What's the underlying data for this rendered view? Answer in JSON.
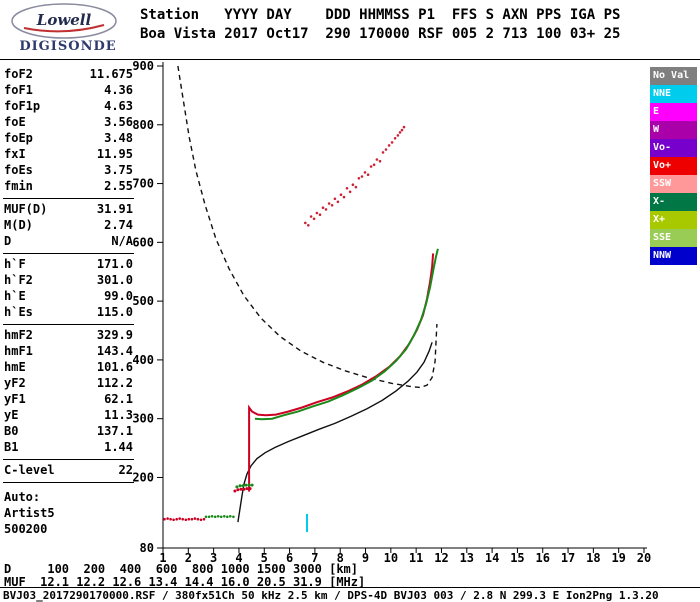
{
  "logo": {
    "line1": "Lowell",
    "line2": "DIGISONDE"
  },
  "header": {
    "line1": "Station   YYYY DAY    DDD HHMMSS P1  FFS S AXN PPS IGA PS",
    "line2": "Boa Vista 2017 Oct17  290 170000 RSF 005 2 713 100 03+ 25"
  },
  "params": {
    "groups": [
      {
        "rows": [
          {
            "label": "foF2",
            "value": "11.675"
          },
          {
            "label": "foF1",
            "value": "4.36"
          },
          {
            "label": "foF1p",
            "value": "4.63"
          },
          {
            "label": "foE",
            "value": "3.56"
          },
          {
            "label": "foEp",
            "value": "3.48"
          },
          {
            "label": "fxI",
            "value": "11.95"
          },
          {
            "label": "foEs",
            "value": "3.75"
          },
          {
            "label": "fmin",
            "value": "2.55"
          }
        ]
      },
      {
        "rows": [
          {
            "label": "MUF(D)",
            "value": "31.91"
          },
          {
            "label": "M(D)",
            "value": "2.74"
          },
          {
            "label": "D",
            "value": "N/A"
          }
        ]
      },
      {
        "rows": [
          {
            "label": "h`F",
            "value": "171.0"
          },
          {
            "label": "h`F2",
            "value": "301.0"
          },
          {
            "label": "h`E",
            "value": "99.0"
          },
          {
            "label": "h`Es",
            "value": "115.0"
          }
        ]
      },
      {
        "rows": [
          {
            "label": "hmF2",
            "value": "329.9"
          },
          {
            "label": "hmF1",
            "value": "143.4"
          },
          {
            "label": "hmE",
            "value": "101.6"
          },
          {
            "label": "yF2",
            "value": "112.2"
          },
          {
            "label": "yF1",
            "value": "62.1"
          },
          {
            "label": "yE",
            "value": "11.3"
          },
          {
            "label": "B0",
            "value": "137.1"
          },
          {
            "label": "B1",
            "value": "1.44"
          }
        ]
      },
      {
        "rows": [
          {
            "label": "C-level",
            "value": "22"
          }
        ]
      }
    ],
    "footer": [
      "Auto:",
      "Artist5",
      "500200"
    ]
  },
  "legend": {
    "items": [
      {
        "label": "No Val",
        "color": "#7f7f7f"
      },
      {
        "label": "NNE",
        "color": "#00ccee"
      },
      {
        "label": "E",
        "color": "#ff00ff"
      },
      {
        "label": "W",
        "color": "#aa00aa"
      },
      {
        "label": "Vo-",
        "color": "#7700cc"
      },
      {
        "label": "Vo+",
        "color": "#ee0000"
      },
      {
        "label": "SSW",
        "color": "#ff9999"
      },
      {
        "label": "X-",
        "color": "#007744"
      },
      {
        "label": "X+",
        "color": "#a8c800"
      },
      {
        "label": "SSE",
        "color": "#99cc55"
      },
      {
        "label": "NNW",
        "color": "#0000cc"
      }
    ]
  },
  "distance_table": {
    "d_label": "D",
    "d_unit": "[km]",
    "distances": [
      100,
      200,
      400,
      600,
      800,
      1000,
      1500,
      3000
    ],
    "muf_label": "MUF",
    "muf_unit": "[MHz]",
    "muf_values": [
      12.1,
      12.2,
      12.6,
      13.4,
      14.4,
      16.0,
      20.5,
      31.9
    ]
  },
  "footer_line": "BVJ03_2017290170000.RSF / 380fx51Ch 50 kHz 2.5 km / DPS-4D BVJ03 003 / 2.8 N 299.3 E Ion2Png 1.3.20",
  "chart_data": {
    "type": "line",
    "title": "",
    "xlabel": "",
    "ylabel": "",
    "xlim": [
      1,
      20
    ],
    "ylim": [
      80,
      900
    ],
    "x_ticks": [
      1,
      2,
      3,
      4,
      5,
      6,
      7,
      8,
      9,
      10,
      11,
      12,
      13,
      14,
      15,
      16,
      17,
      18,
      19,
      20
    ],
    "y_ticks": [
      80,
      200,
      300,
      400,
      500,
      600,
      700,
      800,
      900
    ],
    "grid": false,
    "legend_position": "right",
    "series": [
      {
        "name": "transmission-curve",
        "render": "dash",
        "color": "#111111",
        "width": 1.4,
        "points": [
          [
            1.59,
            900
          ],
          [
            1.79,
            845
          ],
          [
            2.03,
            780
          ],
          [
            2.3,
            722
          ],
          [
            2.66,
            664
          ],
          [
            3.09,
            606
          ],
          [
            3.61,
            555
          ],
          [
            4.2,
            509
          ],
          [
            4.87,
            471
          ],
          [
            5.62,
            440
          ],
          [
            6.45,
            415
          ],
          [
            7.32,
            396
          ],
          [
            8.23,
            381
          ],
          [
            9.14,
            369
          ],
          [
            10.05,
            360
          ],
          [
            10.76,
            355
          ],
          [
            11.15,
            353
          ],
          [
            11.43,
            357
          ],
          [
            11.63,
            370
          ],
          [
            11.75,
            398
          ],
          [
            11.78,
            427
          ],
          [
            11.82,
            461
          ]
        ]
      },
      {
        "name": "electron-density-profile",
        "render": "line",
        "color": "#111111",
        "width": 1.4,
        "points": [
          [
            3.96,
            124
          ],
          [
            4.04,
            147
          ],
          [
            4.12,
            169
          ],
          [
            4.2,
            189
          ],
          [
            4.32,
            206
          ],
          [
            4.48,
            220
          ],
          [
            4.71,
            232
          ],
          [
            5.03,
            242
          ],
          [
            5.42,
            251
          ],
          [
            5.94,
            261
          ],
          [
            6.53,
            271
          ],
          [
            7.16,
            282
          ],
          [
            7.79,
            292
          ],
          [
            8.43,
            304
          ],
          [
            9.06,
            317
          ],
          [
            9.65,
            331
          ],
          [
            10.2,
            347
          ],
          [
            10.68,
            364
          ],
          [
            11.03,
            379
          ],
          [
            11.31,
            396
          ],
          [
            11.51,
            415
          ],
          [
            11.63,
            430
          ]
        ]
      },
      {
        "name": "o-trace",
        "render": "line",
        "color": "#cc0022",
        "width": 2,
        "points": [
          [
            4.4,
            176
          ],
          [
            4.4,
            319
          ],
          [
            4.52,
            312
          ],
          [
            4.75,
            307
          ],
          [
            5.07,
            306
          ],
          [
            5.46,
            307
          ],
          [
            5.94,
            312
          ],
          [
            6.49,
            319
          ],
          [
            7.08,
            328
          ],
          [
            7.68,
            336
          ],
          [
            8.27,
            346
          ],
          [
            8.86,
            358
          ],
          [
            9.41,
            372
          ],
          [
            9.93,
            388
          ],
          [
            10.36,
            406
          ],
          [
            10.72,
            427
          ],
          [
            11.03,
            451
          ],
          [
            11.27,
            476
          ],
          [
            11.43,
            504
          ],
          [
            11.55,
            533
          ],
          [
            11.63,
            558
          ],
          [
            11.67,
            581
          ]
        ]
      },
      {
        "name": "x-trace",
        "render": "line",
        "color": "#1a8a1a",
        "width": 2,
        "points": [
          [
            4.63,
            300
          ],
          [
            4.91,
            299
          ],
          [
            5.31,
            300
          ],
          [
            5.78,
            306
          ],
          [
            6.33,
            312
          ],
          [
            6.93,
            321
          ],
          [
            7.52,
            329
          ],
          [
            8.11,
            340
          ],
          [
            8.7,
            352
          ],
          [
            9.26,
            365
          ],
          [
            9.77,
            381
          ],
          [
            10.2,
            398
          ],
          [
            10.6,
            418
          ],
          [
            10.92,
            442
          ],
          [
            11.19,
            468
          ],
          [
            11.39,
            495
          ],
          [
            11.55,
            524
          ],
          [
            11.67,
            551
          ],
          [
            11.78,
            575
          ],
          [
            11.86,
            589
          ]
        ]
      },
      {
        "name": "spread-f-scatter",
        "render": "dots",
        "color": "#cc2233",
        "r": 1.3,
        "points": [
          [
            6.62,
            633
          ],
          [
            6.74,
            629
          ],
          [
            6.85,
            644
          ],
          [
            6.97,
            640
          ],
          [
            7.08,
            650
          ],
          [
            7.2,
            647
          ],
          [
            7.32,
            659
          ],
          [
            7.44,
            656
          ],
          [
            7.56,
            666
          ],
          [
            7.68,
            663
          ],
          [
            7.79,
            674
          ],
          [
            7.91,
            669
          ],
          [
            8.03,
            681
          ],
          [
            8.15,
            677
          ],
          [
            8.27,
            692
          ],
          [
            8.39,
            686
          ],
          [
            8.5,
            698
          ],
          [
            8.62,
            694
          ],
          [
            8.74,
            709
          ],
          [
            8.86,
            712
          ],
          [
            8.98,
            719
          ],
          [
            9.1,
            715
          ],
          [
            9.22,
            729
          ],
          [
            9.34,
            732
          ],
          [
            9.45,
            741
          ],
          [
            9.57,
            738
          ],
          [
            9.69,
            753
          ],
          [
            9.81,
            758
          ],
          [
            9.93,
            765
          ],
          [
            10.05,
            770
          ],
          [
            10.17,
            777
          ],
          [
            10.28,
            782
          ],
          [
            10.36,
            787
          ],
          [
            10.44,
            791
          ],
          [
            10.52,
            796
          ]
        ]
      },
      {
        "name": "es-trace-o",
        "render": "dots",
        "color": "#cc0022",
        "r": 1.5,
        "points": [
          [
            3.84,
            177
          ],
          [
            3.96,
            179
          ],
          [
            4.08,
            180
          ],
          [
            4.2,
            180
          ],
          [
            4.32,
            181
          ],
          [
            4.44,
            181
          ]
        ]
      },
      {
        "name": "es-trace-x",
        "render": "dots",
        "color": "#1a8a1a",
        "r": 1.5,
        "points": [
          [
            3.92,
            184
          ],
          [
            4.04,
            186
          ],
          [
            4.16,
            186
          ],
          [
            4.28,
            187
          ],
          [
            4.4,
            187
          ],
          [
            4.52,
            187
          ]
        ]
      },
      {
        "name": "e-region-o",
        "render": "dots",
        "color": "#cc0022",
        "r": 1.3,
        "points": [
          [
            1.06,
            129
          ],
          [
            1.18,
            130
          ],
          [
            1.3,
            129
          ],
          [
            1.42,
            128
          ],
          [
            1.54,
            129
          ],
          [
            1.66,
            130
          ],
          [
            1.78,
            129
          ],
          [
            1.9,
            128
          ],
          [
            2.02,
            129
          ],
          [
            2.14,
            129
          ],
          [
            2.26,
            130
          ],
          [
            2.38,
            129
          ],
          [
            2.5,
            128
          ],
          [
            2.62,
            129
          ]
        ]
      },
      {
        "name": "e-region-x",
        "render": "dots",
        "color": "#1a8a1a",
        "r": 1.3,
        "points": [
          [
            2.7,
            133
          ],
          [
            2.82,
            133
          ],
          [
            2.94,
            134
          ],
          [
            3.06,
            133
          ],
          [
            3.18,
            134
          ],
          [
            3.3,
            133
          ],
          [
            3.42,
            134
          ],
          [
            3.54,
            133
          ],
          [
            3.66,
            134
          ],
          [
            3.78,
            133
          ]
        ]
      },
      {
        "name": "nne-mark",
        "render": "line",
        "color": "#00ccee",
        "width": 2,
        "points": [
          [
            6.69,
            107
          ],
          [
            6.69,
            138
          ]
        ]
      }
    ]
  }
}
